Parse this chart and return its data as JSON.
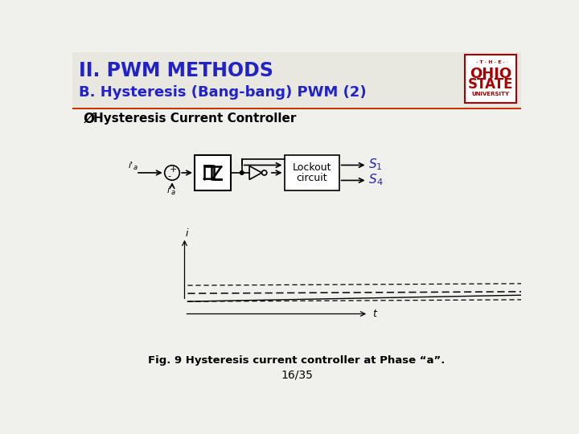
{
  "title_line1": "II. PWM METHODS",
  "title_line2": "B. Hysteresis (Bang-bang) PWM (2)",
  "title_color": "#2222cc",
  "header_bg": "#e8e8e0",
  "slide_bg": "#f0f0ec",
  "orange_bar_color": "#cc3300",
  "bullet_text": "Hysteresis Current Controller",
  "fig_caption": "Fig. 9 Hysteresis current controller at Phase “a”.",
  "page_number": "16/35",
  "ohio_state_color": "#aa0000",
  "s_color": "#2222cc"
}
